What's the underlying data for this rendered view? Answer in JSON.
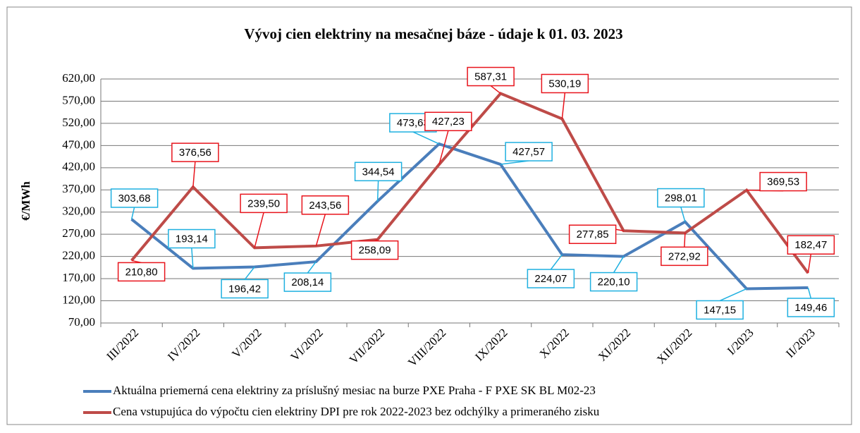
{
  "chart_data": {
    "type": "line",
    "title": "Vývoj cien elektriny na mesačnej báze - údaje k 01. 03. 2023",
    "y_label": "€/MWh",
    "categories": [
      "III/2022",
      "IV/2022",
      "V/2022",
      "VI/2022",
      "VII/2022",
      "VIII/2022",
      "IX/2022",
      "X/2022",
      "XI/2022",
      "XII/2022",
      "I/2023",
      "II/2023"
    ],
    "series": [
      {
        "name": "Aktuálna priemerná cena elektriny za príslušný mesiac na burze PXE Praha - F PXE SK BL M02-23",
        "color": "#4a7ebb",
        "values": [
          303.68,
          193.14,
          196.42,
          208.14,
          344.54,
          473.63,
          427.57,
          224.07,
          220.1,
          298.01,
          147.15,
          149.46
        ],
        "value_labels": [
          "303,68",
          "193,14",
          "196,42",
          "208,14",
          "344,54",
          "473,63",
          "427,57",
          "224,07",
          "220,10",
          "298,01",
          "147,15",
          "149,46"
        ],
        "label_color": "#1fb0e0"
      },
      {
        "name": "Cena vstupujúca do výpočtu cien elektriny DPI pre rok 2022-2023 bez odchýlky a primeraného zisku",
        "color": "#be4b48",
        "values": [
          210.8,
          376.56,
          239.5,
          243.56,
          258.09,
          427.23,
          587.31,
          530.19,
          277.85,
          272.92,
          369.53,
          182.47
        ],
        "value_labels": [
          "210,80",
          "376,56",
          "239,50",
          "243,56",
          "258,09",
          "427,23",
          "587,31",
          "530,19",
          "277,85",
          "272,92",
          "369,53",
          "182,47"
        ],
        "label_color": "#e8141c"
      }
    ],
    "ylim": [
      70,
      620
    ],
    "yticks": [
      {
        "value": 70,
        "label": "70,00"
      },
      {
        "value": 120,
        "label": "120,00"
      },
      {
        "value": 170,
        "label": "170,00"
      },
      {
        "value": 220,
        "label": "220,00"
      },
      {
        "value": 270,
        "label": "270,00"
      },
      {
        "value": 320,
        "label": "320,00"
      },
      {
        "value": 370,
        "label": "370,00"
      },
      {
        "value": 420,
        "label": "420,00"
      },
      {
        "value": 470,
        "label": "470,00"
      },
      {
        "value": 520,
        "label": "520,00"
      },
      {
        "value": 570,
        "label": "570,00"
      },
      {
        "value": 620,
        "label": "620,00"
      }
    ],
    "grid": true,
    "legend": "bottom"
  }
}
